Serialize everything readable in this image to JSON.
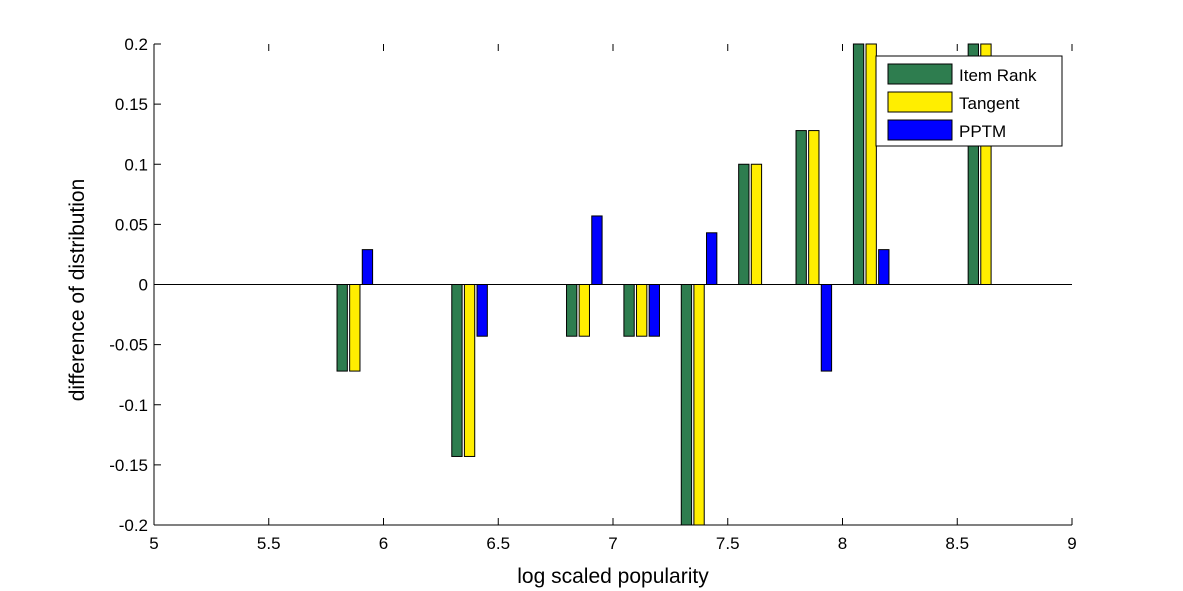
{
  "chart_data": {
    "type": "bar",
    "xlabel": "log scaled popularity",
    "ylabel": "difference of distribution",
    "xlim": [
      5,
      9
    ],
    "ylim": [
      -0.2,
      0.2
    ],
    "x_ticks": [
      5,
      5.5,
      6,
      6.5,
      7,
      7.5,
      8,
      8.5,
      9
    ],
    "x_tick_labels": [
      "5",
      "5.5",
      "6",
      "6.5",
      "7",
      "7.5",
      "8",
      "8.5",
      "9"
    ],
    "y_ticks": [
      -0.2,
      -0.15,
      -0.1,
      -0.05,
      0,
      0.05,
      0.1,
      0.15,
      0.2
    ],
    "y_tick_labels": [
      "-0.2",
      "-0.15",
      "-0.1",
      "-0.05",
      "0",
      "0.05",
      "0.1",
      "0.15",
      "0.2"
    ],
    "x": [
      5.875,
      6.375,
      6.875,
      7.125,
      7.375,
      7.625,
      7.875,
      8.125,
      8.625
    ],
    "legend_position": "top-right",
    "grid": false,
    "series": [
      {
        "name": "Item Rank",
        "color": "#2e7d4f",
        "values": [
          -0.072,
          -0.143,
          -0.043,
          -0.043,
          -0.2,
          0.1,
          0.128,
          0.2,
          0.2
        ]
      },
      {
        "name": "Tangent",
        "color": "#ffee00",
        "values": [
          -0.072,
          -0.143,
          -0.043,
          -0.043,
          -0.2,
          0.1,
          0.128,
          0.2,
          0.2
        ]
      },
      {
        "name": "PPTM",
        "color": "#0000ff",
        "values": [
          0.029,
          -0.043,
          0.057,
          -0.043,
          0.043,
          0,
          -0.072,
          0.029,
          0
        ]
      }
    ]
  }
}
